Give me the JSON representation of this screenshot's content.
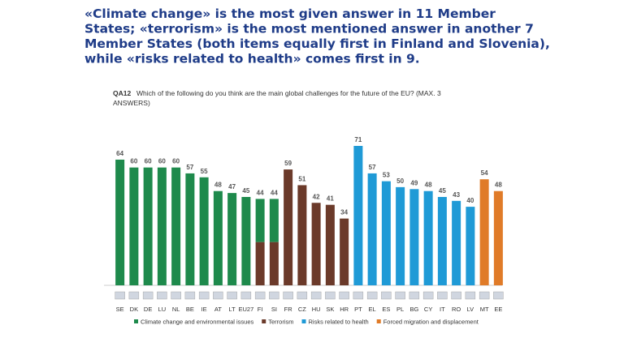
{
  "chart_data": {
    "type": "bar",
    "title": [
      "«Climate change» is the most given answer in 11 Member",
      "States; «terrorism» is the most mentioned answer in another 7",
      "Member States (both items equally first in Finland and Slovenia),",
      "while «risks related to health» comes first in 9."
    ],
    "question_id": "QA12",
    "subtitle": [
      "Which of the following do you think are the main global challenges for the future of the EU? (MAX. 3",
      "ANSWERS)"
    ],
    "categories": [
      "SE",
      "DK",
      "DE",
      "LU",
      "NL",
      "BE",
      "IE",
      "AT",
      "LT",
      "EU27",
      "FI",
      "SI",
      "FR",
      "CZ",
      "HU",
      "SK",
      "HR",
      "PT",
      "EL",
      "ES",
      "PL",
      "BG",
      "CY",
      "IT",
      "RO",
      "LV",
      "MT",
      "EE"
    ],
    "series": [
      {
        "name": "Climate change and environmental issues",
        "color": "#1e8a4c",
        "values": [
          64,
          60,
          60,
          60,
          60,
          57,
          55,
          48,
          47,
          45,
          44,
          44,
          null,
          null,
          null,
          null,
          null,
          null,
          null,
          null,
          null,
          null,
          null,
          null,
          null,
          null,
          null,
          null
        ]
      },
      {
        "name": "Terrorism",
        "color": "#6b3a2a",
        "values": [
          null,
          null,
          null,
          null,
          null,
          null,
          null,
          null,
          null,
          null,
          44,
          44,
          59,
          51,
          42,
          41,
          34,
          null,
          null,
          null,
          null,
          null,
          null,
          null,
          null,
          null,
          null,
          null
        ]
      },
      {
        "name": "Risks related to health",
        "color": "#1f9ad6",
        "values": [
          null,
          null,
          null,
          null,
          null,
          null,
          null,
          null,
          null,
          null,
          null,
          null,
          null,
          null,
          null,
          null,
          null,
          71,
          57,
          53,
          50,
          49,
          48,
          45,
          43,
          40,
          null,
          null
        ]
      },
      {
        "name": "Forced migration and displacement",
        "color": "#e07b28",
        "values": [
          null,
          null,
          null,
          null,
          null,
          null,
          null,
          null,
          null,
          null,
          null,
          null,
          null,
          null,
          null,
          null,
          null,
          null,
          null,
          null,
          null,
          null,
          null,
          null,
          null,
          null,
          54,
          48
        ]
      }
    ]
  }
}
